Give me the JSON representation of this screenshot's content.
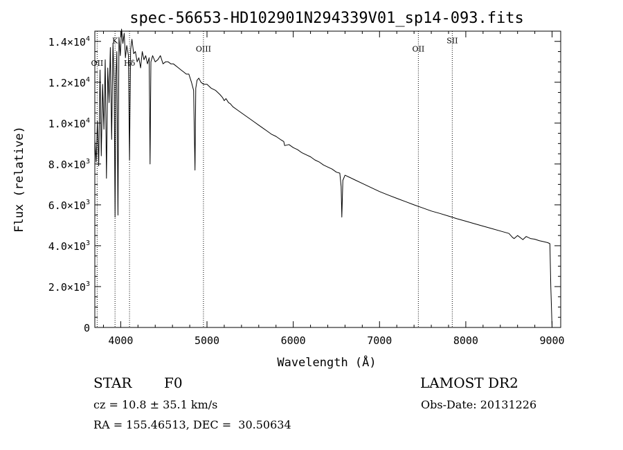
{
  "chart_data": {
    "type": "line",
    "title": "spec-56653-HD102901N294339V01_sp14-093.fits",
    "xlabel": "Wavelength (Å)",
    "ylabel": "Flux (relative)",
    "xlim": [
      3700,
      9100
    ],
    "ylim": [
      0,
      14500
    ],
    "grid": false,
    "legend": "none",
    "xticks": [
      {
        "value": 4000,
        "label": "4000"
      },
      {
        "value": 5000,
        "label": "5000"
      },
      {
        "value": 6000,
        "label": "6000"
      },
      {
        "value": 7000,
        "label": "7000"
      },
      {
        "value": 8000,
        "label": "8000"
      },
      {
        "value": 9000,
        "label": "9000"
      }
    ],
    "yticks": [
      {
        "value": 0,
        "mant": "0",
        "exp": ""
      },
      {
        "value": 2000,
        "mant": "2.0×10",
        "exp": "3"
      },
      {
        "value": 4000,
        "mant": "4.0×10",
        "exp": "3"
      },
      {
        "value": 6000,
        "mant": "6.0×10",
        "exp": "3"
      },
      {
        "value": 8000,
        "mant": "8.0×10",
        "exp": "3"
      },
      {
        "value": 10000,
        "mant": "1.0×10",
        "exp": "4"
      },
      {
        "value": 12000,
        "mant": "1.2×10",
        "exp": "4"
      },
      {
        "value": 14000,
        "mant": "1.4×10",
        "exp": "4"
      }
    ],
    "lines": [
      {
        "label": "OII",
        "x": 3727,
        "label_y": 12800
      },
      {
        "label": "K",
        "x": 3934,
        "label_y": 13900
      },
      {
        "label": "Hδ",
        "x": 4102,
        "label_y": 12800
      },
      {
        "label": "OIII",
        "x": 4959,
        "label_y": 13500
      },
      {
        "label": "OII",
        "x": 7450,
        "label_y": 13500
      },
      {
        "label": "SII",
        "x": 7843,
        "label_y": 13900
      }
    ],
    "series": [
      {
        "color": "#000000",
        "x": [
          3700,
          3715,
          3730,
          3745,
          3760,
          3775,
          3790,
          3805,
          3820,
          3835,
          3850,
          3865,
          3880,
          3895,
          3910,
          3925,
          3934,
          3945,
          3955,
          3968,
          3980,
          3995,
          4010,
          4025,
          4040,
          4055,
          4070,
          4090,
          4102,
          4115,
          4130,
          4150,
          4170,
          4190,
          4210,
          4230,
          4250,
          4270,
          4290,
          4310,
          4330,
          4340,
          4350,
          4370,
          4400,
          4430,
          4460,
          4490,
          4520,
          4550,
          4580,
          4610,
          4640,
          4670,
          4700,
          4730,
          4760,
          4790,
          4820,
          4845,
          4861,
          4870,
          4885,
          4905,
          4930,
          4960,
          5000,
          5050,
          5100,
          5150,
          5180,
          5200,
          5220,
          5250,
          5270,
          5300,
          5350,
          5400,
          5450,
          5500,
          5550,
          5600,
          5650,
          5700,
          5750,
          5800,
          5850,
          5890,
          5900,
          5950,
          6000,
          6050,
          6100,
          6150,
          6200,
          6250,
          6300,
          6350,
          6400,
          6450,
          6500,
          6540,
          6555,
          6563,
          6575,
          6600,
          6650,
          6700,
          6800,
          6900,
          7000,
          7100,
          7200,
          7300,
          7400,
          7500,
          7600,
          7700,
          7800,
          7900,
          8000,
          8100,
          8200,
          8300,
          8400,
          8500,
          8542,
          8560,
          8600,
          8662,
          8700,
          8750,
          8800,
          8850,
          8900,
          8950,
          8975,
          8985,
          8995,
          9000
        ],
        "y": [
          9200,
          8100,
          10100,
          7900,
          12600,
          8400,
          11900,
          9700,
          13100,
          7300,
          12700,
          11000,
          13700,
          9200,
          13900,
          11800,
          5400,
          12300,
          13500,
          5500,
          14200,
          13300,
          14600,
          13900,
          14400,
          13200,
          13800,
          13300,
          8200,
          13600,
          14100,
          13400,
          13500,
          13000,
          13200,
          12700,
          13500,
          13100,
          13300,
          12900,
          13200,
          8000,
          13000,
          13300,
          13000,
          13100,
          13300,
          12900,
          13000,
          13000,
          12900,
          12900,
          12800,
          12700,
          12600,
          12500,
          12400,
          12400,
          12000,
          11600,
          7700,
          11700,
          12100,
          12200,
          12000,
          11900,
          11900,
          11700,
          11600,
          11400,
          11250,
          11100,
          11200,
          11000,
          10950,
          10800,
          10650,
          10500,
          10350,
          10200,
          10050,
          9900,
          9750,
          9600,
          9450,
          9350,
          9200,
          9100,
          8900,
          8950,
          8800,
          8700,
          8550,
          8450,
          8350,
          8200,
          8100,
          7950,
          7850,
          7750,
          7600,
          7550,
          6900,
          5400,
          7200,
          7450,
          7350,
          7250,
          7050,
          6850,
          6650,
          6480,
          6320,
          6160,
          6000,
          5850,
          5700,
          5580,
          5450,
          5320,
          5200,
          5080,
          4960,
          4840,
          4720,
          4600,
          4400,
          4350,
          4500,
          4300,
          4450,
          4350,
          4320,
          4250,
          4200,
          4150,
          4100,
          2000,
          700,
          0
        ]
      }
    ]
  },
  "info": {
    "object_class": "STAR",
    "subclass": "F0",
    "survey": "LAMOST DR2",
    "cz": "cz = 10.8 ± 35.1 km/s",
    "obs_date": "Obs-Date: 20131226",
    "coords": "RA = 155.46513, DEC =  30.50634"
  }
}
